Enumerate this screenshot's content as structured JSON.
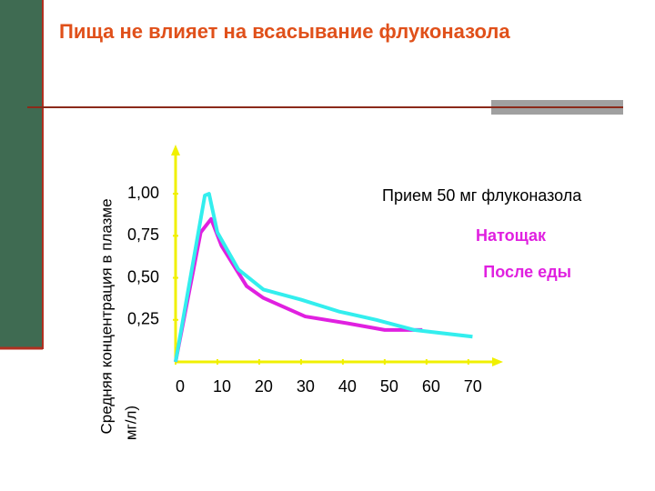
{
  "chart_data": {
    "type": "line",
    "title": "Пища не влияет на всасывание флуконазола",
    "y_label": [
      "Средняя концентрация в плазме",
      "мг/л)"
    ],
    "annotation": "Прием 50 мг флуконазола",
    "xlim": [
      0,
      77
    ],
    "ylim": [
      0,
      1.26
    ],
    "xticks": [
      0,
      10,
      20,
      30,
      40,
      50,
      60,
      70
    ],
    "yticks": [
      {
        "value": 0.25,
        "label": "0,25"
      },
      {
        "value": 0.5,
        "label": "0,50"
      },
      {
        "value": 0.75,
        "label": "0,75"
      },
      {
        "value": 1.0,
        "label": "1,00"
      }
    ],
    "axis_color": "#f0f000",
    "legend_text_color": "#e020e0",
    "series": [
      {
        "name": "Натощак",
        "color": "#33eeee",
        "x": [
          0,
          7,
          8,
          10,
          15,
          21,
          30,
          39,
          48,
          57,
          71
        ],
        "values": [
          0,
          0.99,
          1.0,
          0.77,
          0.55,
          0.43,
          0.37,
          0.3,
          0.25,
          0.19,
          0.15
        ]
      },
      {
        "name": "После еды",
        "color": "#e020e0",
        "x": [
          0,
          6,
          8.5,
          11,
          17,
          21,
          31,
          41,
          50,
          59
        ],
        "values": [
          0,
          0.77,
          0.85,
          0.69,
          0.45,
          0.38,
          0.27,
          0.23,
          0.19,
          0.19
        ]
      }
    ]
  }
}
